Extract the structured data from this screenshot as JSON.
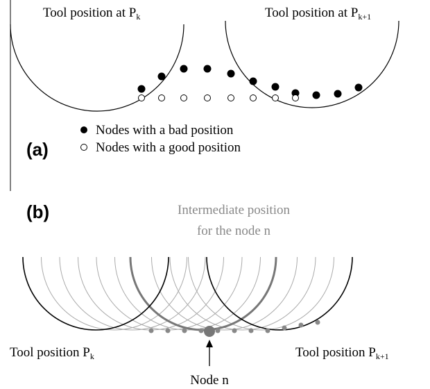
{
  "panel_a": {
    "label": "(a)",
    "tool_left": {
      "text": "Tool position at P",
      "subscript": "k"
    },
    "tool_right": {
      "text": "Tool position at P",
      "subscript": "k+1"
    },
    "legend": [
      "Nodes with a bad position",
      "Nodes with a good position"
    ]
  },
  "panel_b": {
    "label": "(b)",
    "intermediate": [
      "Intermediate position",
      "for the node n"
    ],
    "tool_left": {
      "text": "Tool position P",
      "subscript": "k"
    },
    "tool_right": {
      "text": "Tool position P",
      "subscript": "k+1"
    },
    "node": "Node n"
  }
}
